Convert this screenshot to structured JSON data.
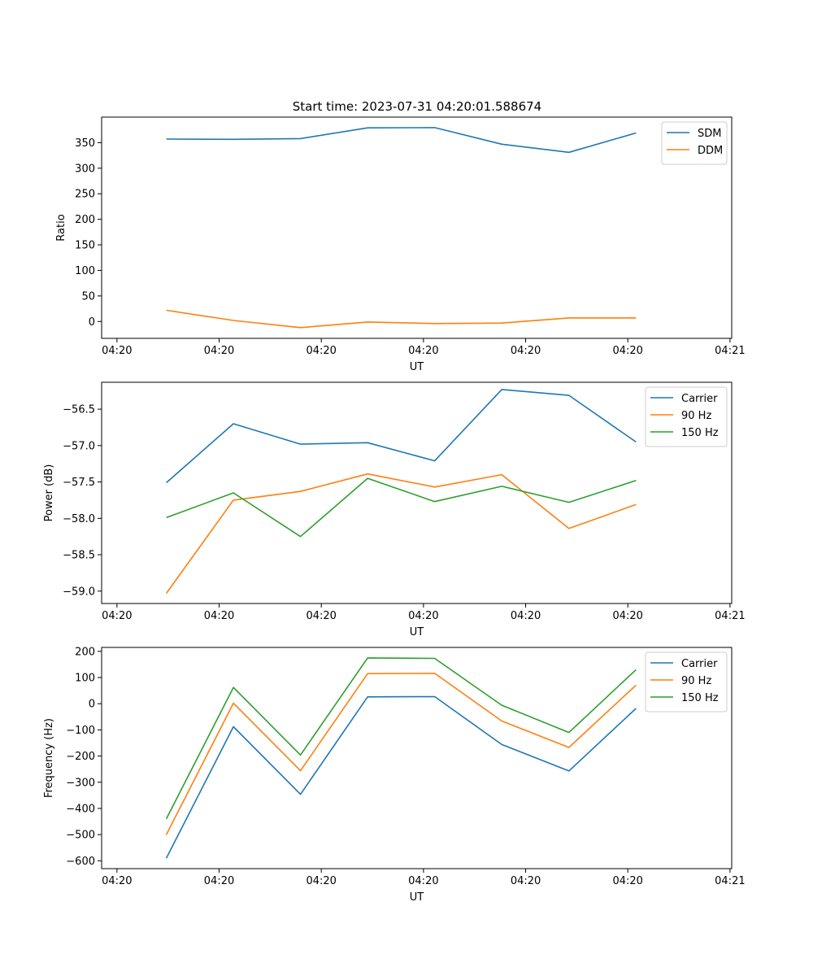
{
  "figure_title": "Start time: 2023-07-31 04:20:01.588674",
  "chart_data": [
    {
      "type": "line",
      "title": "Start time: 2023-07-31 04:20:01.588674",
      "xlabel": "UT",
      "ylabel": "Ratio",
      "xlim": [
        -0.9,
        17.6
      ],
      "ylim": [
        -33,
        400
      ],
      "x_ticks": [
        {
          "value": -0.45,
          "label": "04:20"
        },
        {
          "value": 2.55,
          "label": "04:20"
        },
        {
          "value": 5.55,
          "label": "04:20"
        },
        {
          "value": 8.55,
          "label": "04:20"
        },
        {
          "value": 11.55,
          "label": "04:20"
        },
        {
          "value": 14.55,
          "label": "04:20"
        },
        {
          "value": 17.55,
          "label": "04:21"
        }
      ],
      "y_ticks": [
        0,
        50,
        100,
        150,
        200,
        250,
        300,
        350
      ],
      "legend": "top-right",
      "x": [
        1,
        2.97,
        4.94,
        6.91,
        8.88,
        10.85,
        12.82,
        14.79
      ],
      "series": [
        {
          "name": "SDM",
          "color": "#1f77b4",
          "values": [
            357,
            356.5,
            358,
            379,
            379.5,
            347,
            331,
            369
          ]
        },
        {
          "name": "DDM",
          "color": "#ff7f0e",
          "values": [
            22,
            2,
            -12,
            -1,
            -4,
            -3,
            7,
            7
          ]
        }
      ]
    },
    {
      "type": "line",
      "title": "",
      "xlabel": "UT",
      "ylabel": "Power (dB)",
      "xlim": [
        -0.9,
        17.6
      ],
      "ylim": [
        -59.17,
        -56.13
      ],
      "x_ticks": [
        {
          "value": -0.45,
          "label": "04:20"
        },
        {
          "value": 2.55,
          "label": "04:20"
        },
        {
          "value": 5.55,
          "label": "04:20"
        },
        {
          "value": 8.55,
          "label": "04:20"
        },
        {
          "value": 11.55,
          "label": "04:20"
        },
        {
          "value": 14.55,
          "label": "04:20"
        },
        {
          "value": 17.55,
          "label": "04:21"
        }
      ],
      "y_ticks": [
        -59.0,
        -58.5,
        -58.0,
        -57.5,
        -57.0,
        -56.5
      ],
      "legend": "top-right",
      "x": [
        1,
        2.97,
        4.94,
        6.91,
        8.88,
        10.85,
        12.82,
        14.79
      ],
      "series": [
        {
          "name": "Carrier",
          "color": "#1f77b4",
          "values": [
            -57.51,
            -56.7,
            -56.98,
            -56.96,
            -57.21,
            -56.23,
            -56.31,
            -56.95
          ]
        },
        {
          "name": "90 Hz",
          "color": "#ff7f0e",
          "values": [
            -59.03,
            -57.75,
            -57.63,
            -57.39,
            -57.57,
            -57.4,
            -58.14,
            -57.81
          ]
        },
        {
          "name": "150 Hz",
          "color": "#2ca02c",
          "values": [
            -57.99,
            -57.65,
            -58.25,
            -57.45,
            -57.77,
            -57.56,
            -57.78,
            -57.48
          ]
        }
      ]
    },
    {
      "type": "line",
      "title": "",
      "xlabel": "UT",
      "ylabel": "Frequency (Hz)",
      "xlim": [
        -0.9,
        17.6
      ],
      "ylim": [
        -630,
        215
      ],
      "x_ticks": [
        {
          "value": -0.45,
          "label": "04:20"
        },
        {
          "value": 2.55,
          "label": "04:20"
        },
        {
          "value": 5.55,
          "label": "04:20"
        },
        {
          "value": 8.55,
          "label": "04:20"
        },
        {
          "value": 11.55,
          "label": "04:20"
        },
        {
          "value": 14.55,
          "label": "04:20"
        },
        {
          "value": 17.55,
          "label": "04:21"
        }
      ],
      "y_ticks": [
        -600,
        -500,
        -400,
        -300,
        -200,
        -100,
        0,
        100,
        200
      ],
      "legend": "top-right",
      "x": [
        1,
        2.97,
        4.94,
        6.91,
        8.88,
        10.85,
        12.82,
        14.79
      ],
      "series": [
        {
          "name": "Carrier",
          "color": "#1f77b4",
          "values": [
            -590,
            -88,
            -346,
            26,
            27,
            -156,
            -257,
            -18
          ]
        },
        {
          "name": "90 Hz",
          "color": "#ff7f0e",
          "values": [
            -500,
            2,
            -256,
            115,
            116,
            -66,
            -167,
            71
          ]
        },
        {
          "name": "150 Hz",
          "color": "#2ca02c",
          "values": [
            -440,
            62,
            -196,
            175,
            173,
            -6,
            -110,
            130
          ]
        }
      ]
    }
  ]
}
